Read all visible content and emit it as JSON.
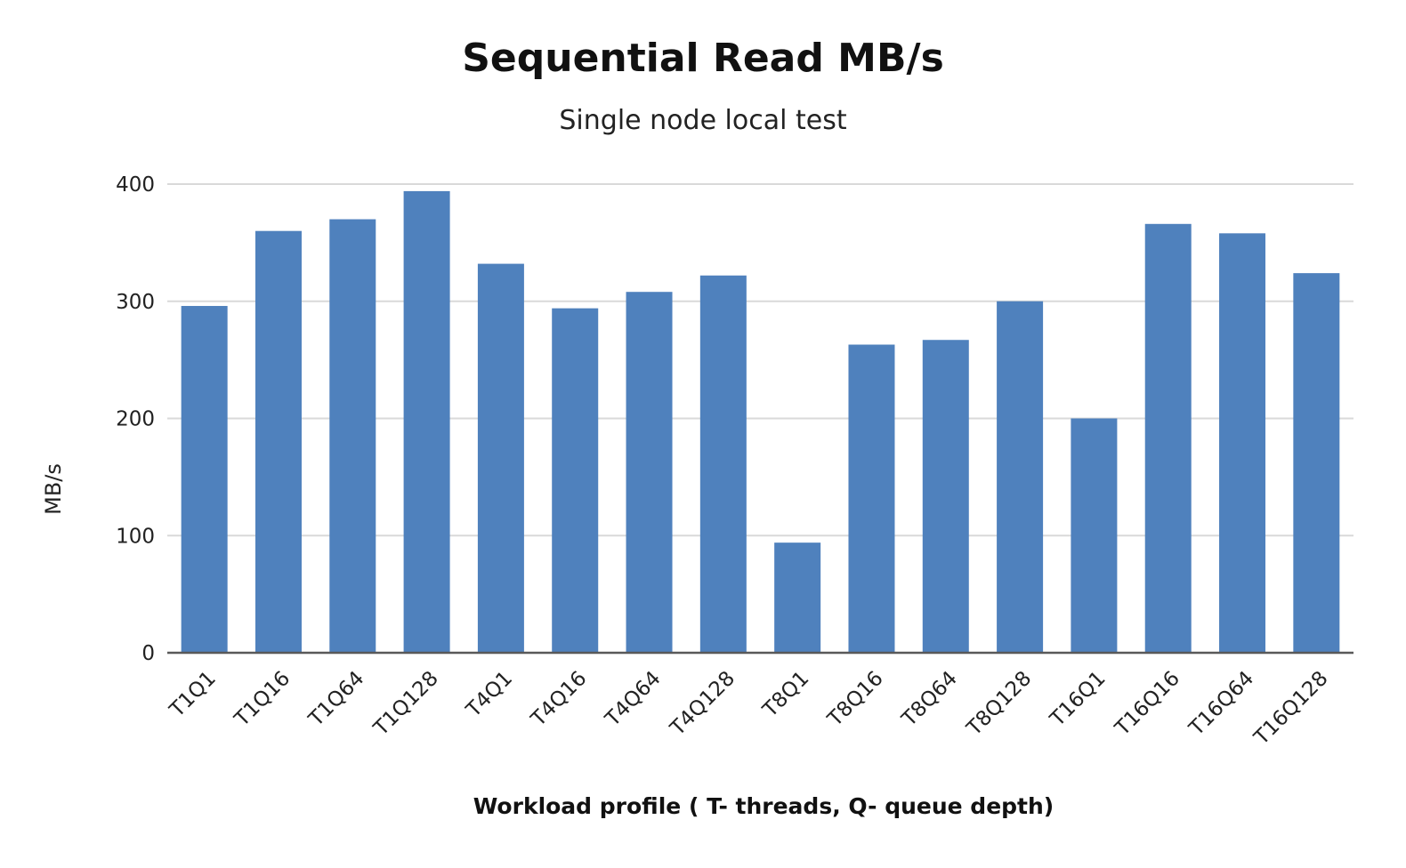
{
  "chart_data": {
    "type": "bar",
    "title": "Sequential Read MB/s",
    "subtitle": "Single node local test",
    "xlabel": "Workload profile ( T- threads, Q- queue depth)",
    "ylabel": "MB/s",
    "categories": [
      "T1Q1",
      "T1Q16",
      "T1Q64",
      "T1Q128",
      "T4Q1",
      "T4Q16",
      "T4Q64",
      "T4Q128",
      "T8Q1",
      "T8Q16",
      "T8Q64",
      "T8Q128",
      "T16Q1",
      "T16Q16",
      "T16Q64",
      "T16Q128"
    ],
    "values": [
      296,
      360,
      370,
      394,
      332,
      294,
      308,
      322,
      94,
      263,
      267,
      300,
      200,
      366,
      358,
      324
    ],
    "ylim": [
      0,
      400
    ],
    "yticks": [
      0,
      100,
      200,
      300,
      400
    ],
    "grid": true,
    "legend": "none",
    "bar_color": "#4f81bd",
    "grid_color": "#d9d9d9",
    "axis_color": "#595959"
  }
}
